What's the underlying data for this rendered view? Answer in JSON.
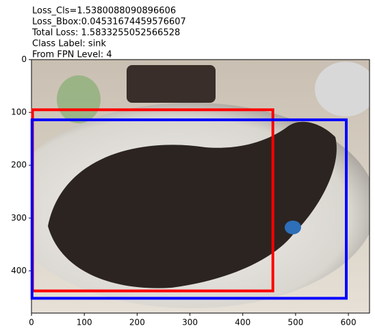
{
  "chart_data": {
    "type": "image",
    "title_lines": [
      "Loss_Cls=1.5380088090896606",
      "Loss_Bbox:0.04531674459576607",
      "Total Loss: 1.5833255052566528",
      "Class Label: sink",
      "From FPN Level: 4"
    ],
    "xlim": [
      0,
      640
    ],
    "ylim": [
      480,
      0
    ],
    "xticks": [
      0,
      100,
      200,
      300,
      400,
      500,
      600
    ],
    "yticks": [
      0,
      100,
      200,
      300,
      400
    ],
    "boxes": [
      {
        "color": "#ff0000",
        "values": [
          2,
          95,
          457,
          438
        ]
      },
      {
        "color": "#0000ff",
        "values": [
          1,
          114,
          596,
          452
        ]
      }
    ]
  }
}
